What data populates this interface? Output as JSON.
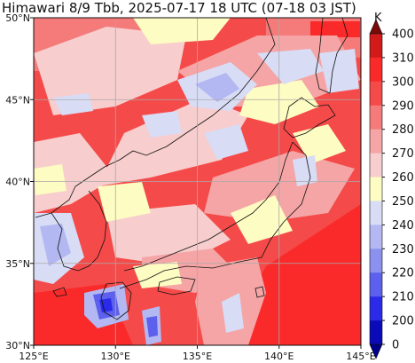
{
  "title": "Himawari 8/9 Tbb, 2025-07-17 18 UTC (07-18 03 JST)",
  "map": {
    "lon_range": [
      125,
      145
    ],
    "lat_range": [
      30,
      50
    ],
    "lon_ticks": [
      {
        "value": 125,
        "label": "125°E"
      },
      {
        "value": 130,
        "label": "130°E"
      },
      {
        "value": 135,
        "label": "135°E"
      },
      {
        "value": 140,
        "label": "140°E"
      },
      {
        "value": 145,
        "label": "145°E"
      }
    ],
    "lat_ticks": [
      {
        "value": 50,
        "label": "50°N"
      },
      {
        "value": 45,
        "label": "45°N"
      },
      {
        "value": 40,
        "label": "40°N"
      },
      {
        "value": 35,
        "label": "35°N"
      },
      {
        "value": 30,
        "label": "30°N"
      }
    ],
    "grid": true,
    "field": "brightness temperature"
  },
  "colorbar": {
    "unit": "K",
    "levels": [
      {
        "value": 400,
        "label": "400"
      },
      {
        "value": 310,
        "label": "310"
      },
      {
        "value": 300,
        "label": "300"
      },
      {
        "value": 290,
        "label": "290"
      },
      {
        "value": 280,
        "label": "280"
      },
      {
        "value": 270,
        "label": "270"
      },
      {
        "value": 260,
        "label": "260"
      },
      {
        "value": 250,
        "label": "250"
      },
      {
        "value": 240,
        "label": "240"
      },
      {
        "value": 230,
        "label": "230"
      },
      {
        "value": 220,
        "label": "220"
      },
      {
        "value": 210,
        "label": "210"
      },
      {
        "value": 200,
        "label": "200"
      },
      {
        "value": 0,
        "label": "0"
      }
    ],
    "colors": [
      "#7a0a0a",
      "#d21a1a",
      "#fa2a2a",
      "#f54a4a",
      "#f57a7a",
      "#f5a5a5",
      "#f7cdcd",
      "#fdfcc2",
      "#d8dcf5",
      "#b3b8f2",
      "#8c90ee",
      "#5d60ec",
      "#2a2ae8",
      "#0a0ab8",
      "#000088"
    ]
  }
}
